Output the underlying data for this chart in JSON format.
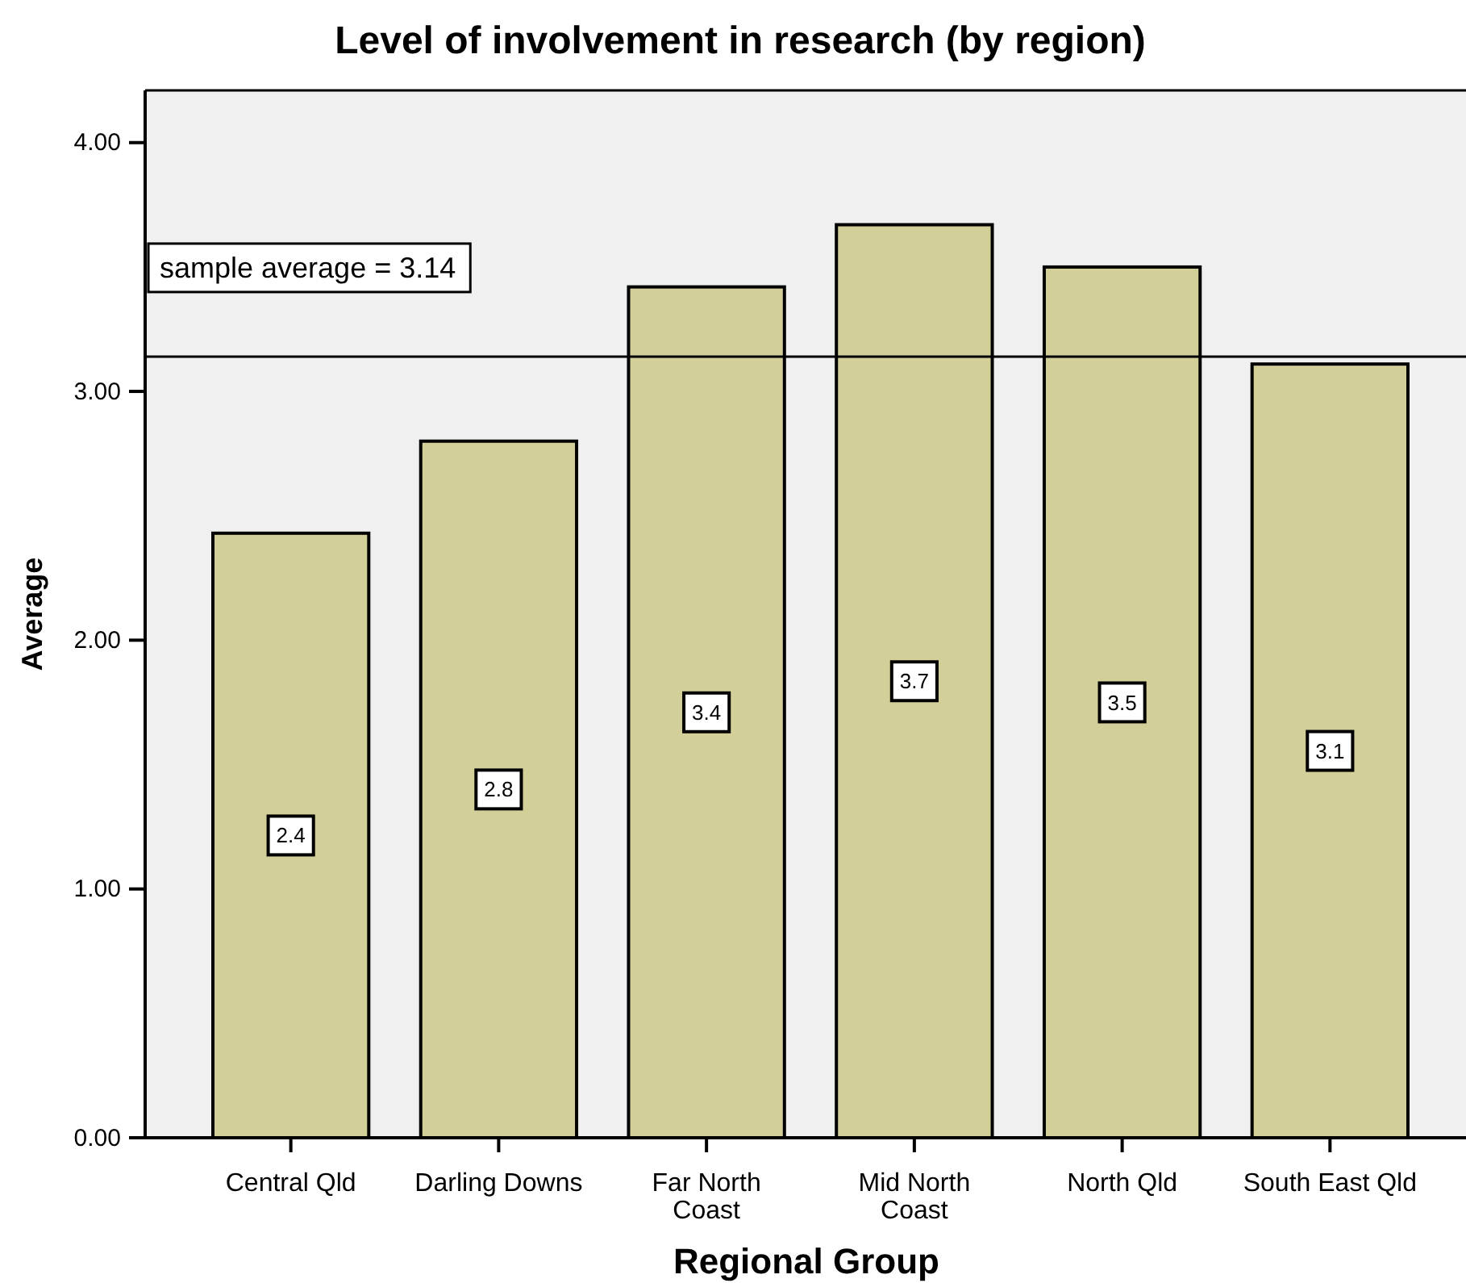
{
  "chart_data": {
    "type": "bar",
    "title": "Level of involvement in research (by region)",
    "xlabel": "Regional Group",
    "ylabel": "Average",
    "categories": [
      "Central Qld",
      "Darling Downs",
      "Far North\nCoast",
      "Mid North\nCoast",
      "North Qld",
      "South East Qld"
    ],
    "values": [
      2.43,
      2.8,
      3.42,
      3.67,
      3.5,
      3.11
    ],
    "value_labels": [
      "2.4",
      "2.8",
      "3.4",
      "3.7",
      "3.5",
      "3.1"
    ],
    "color": "#d3cf98",
    "ylim": [
      0,
      4.21
    ],
    "yticks": [
      {
        "value": 0,
        "label": "0.00"
      },
      {
        "value": 1,
        "label": "1.00"
      },
      {
        "value": 2,
        "label": "2.00"
      },
      {
        "value": 3,
        "label": "3.00"
      },
      {
        "value": 4,
        "label": "4.00"
      }
    ],
    "ref_lines": [
      {
        "axis": "y",
        "value": 3.14,
        "label": "sample average = 3.14",
        "color": "#000000"
      }
    ]
  }
}
